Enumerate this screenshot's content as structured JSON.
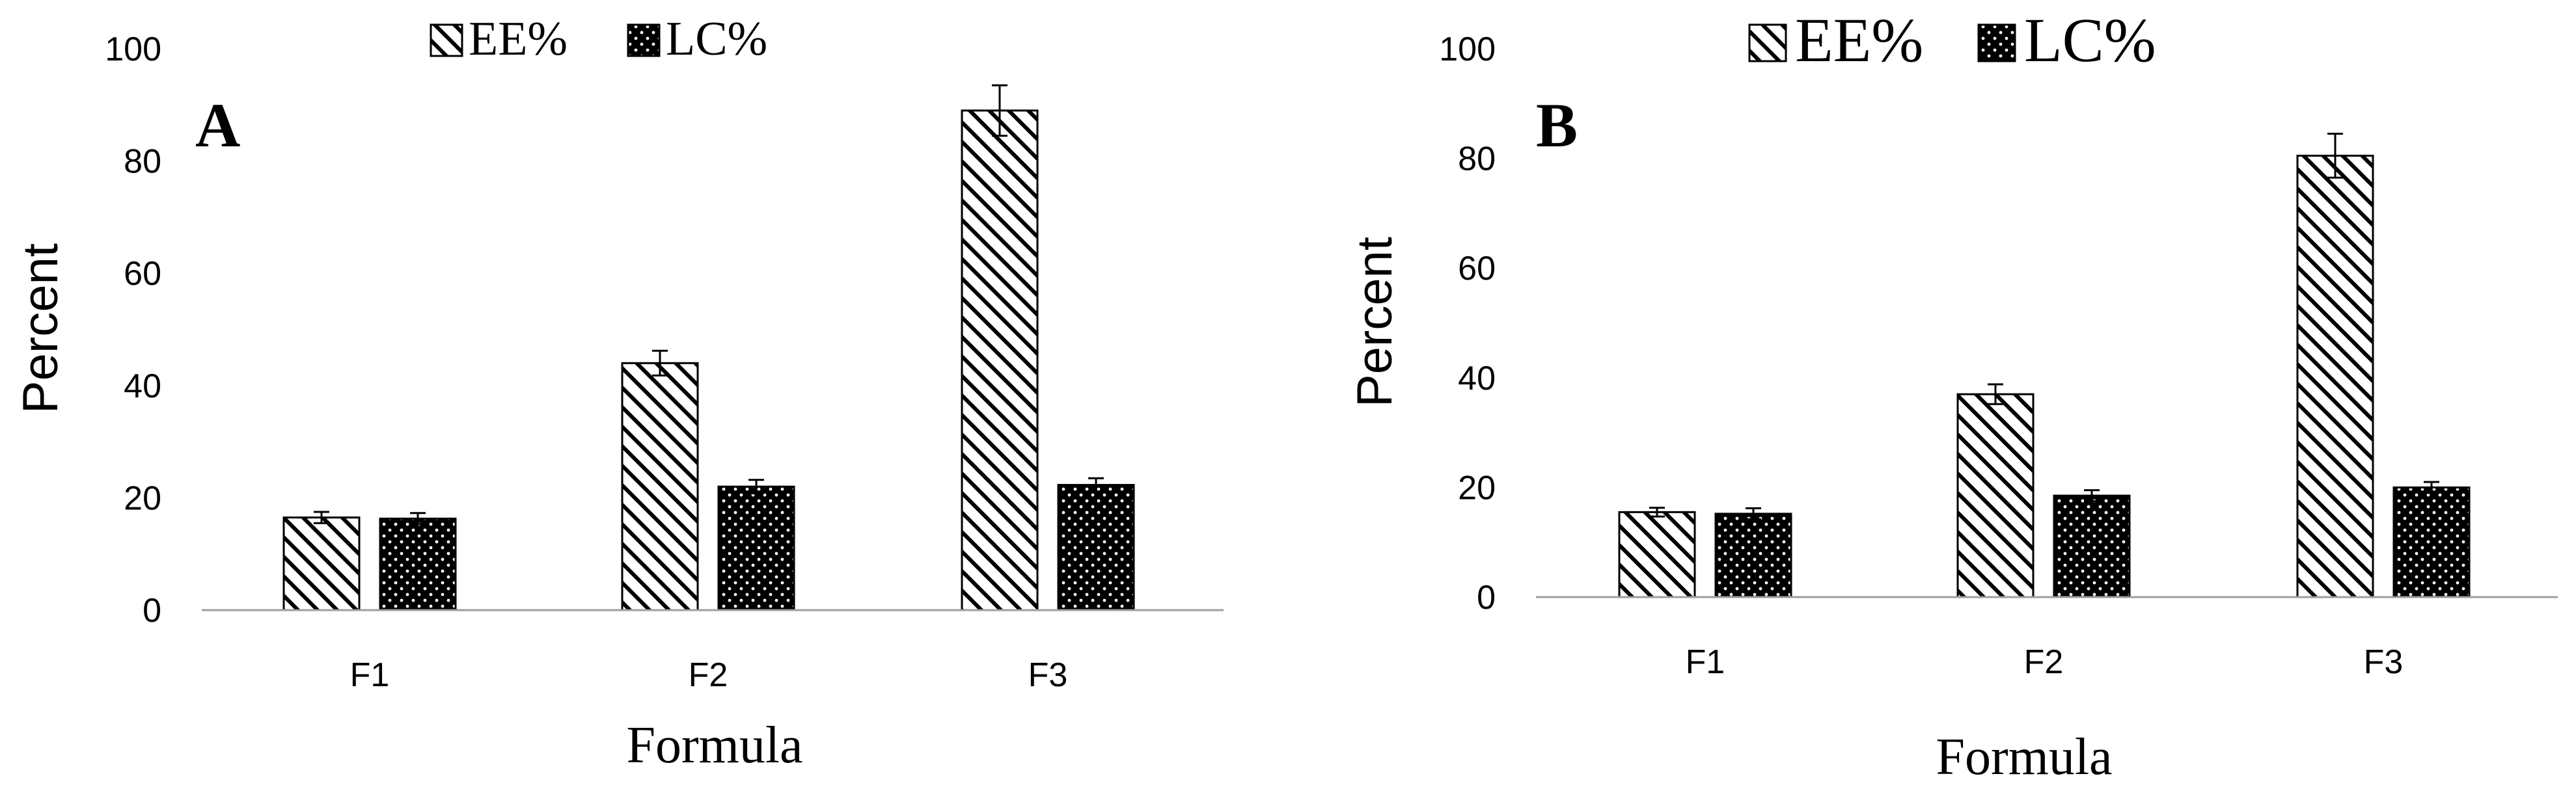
{
  "chart_data": [
    {
      "type": "bar",
      "panel_label": "A",
      "categories": [
        "F1",
        "F2",
        "F3"
      ],
      "series": [
        {
          "name": "EE%",
          "values": [
            16.5,
            44.0,
            89.0
          ],
          "errors": [
            1.0,
            2.2,
            4.5
          ]
        },
        {
          "name": "LC%",
          "values": [
            16.3,
            22.0,
            22.3
          ],
          "errors": [
            1.0,
            1.2,
            1.2
          ]
        }
      ],
      "xlabel": "Formula",
      "ylabel": "Percent",
      "ylim": [
        0,
        100
      ],
      "yticks": [
        "0",
        "20",
        "40",
        "60",
        "80",
        "100"
      ],
      "grid": false,
      "legend_position": "top"
    },
    {
      "type": "bar",
      "panel_label": "B",
      "categories": [
        "F1",
        "F2",
        "F3"
      ],
      "series": [
        {
          "name": "EE%",
          "values": [
            15.5,
            37.0,
            80.5
          ],
          "errors": [
            0.8,
            1.8,
            4.0
          ]
        },
        {
          "name": "LC%",
          "values": [
            15.2,
            18.5,
            20.0
          ],
          "errors": [
            1.0,
            1.0,
            1.0
          ]
        }
      ],
      "xlabel": "Formula",
      "ylabel": "Percent",
      "ylim": [
        0,
        100
      ],
      "yticks": [
        "0",
        "20",
        "40",
        "60",
        "80",
        "100"
      ],
      "grid": false,
      "legend_position": "top"
    }
  ],
  "colors": {
    "bar_outline": "#000000",
    "bar_fill": "#ffffff",
    "axis_line": "#9e9e9e",
    "dots": "#ffffff",
    "background": "#ffffff"
  }
}
